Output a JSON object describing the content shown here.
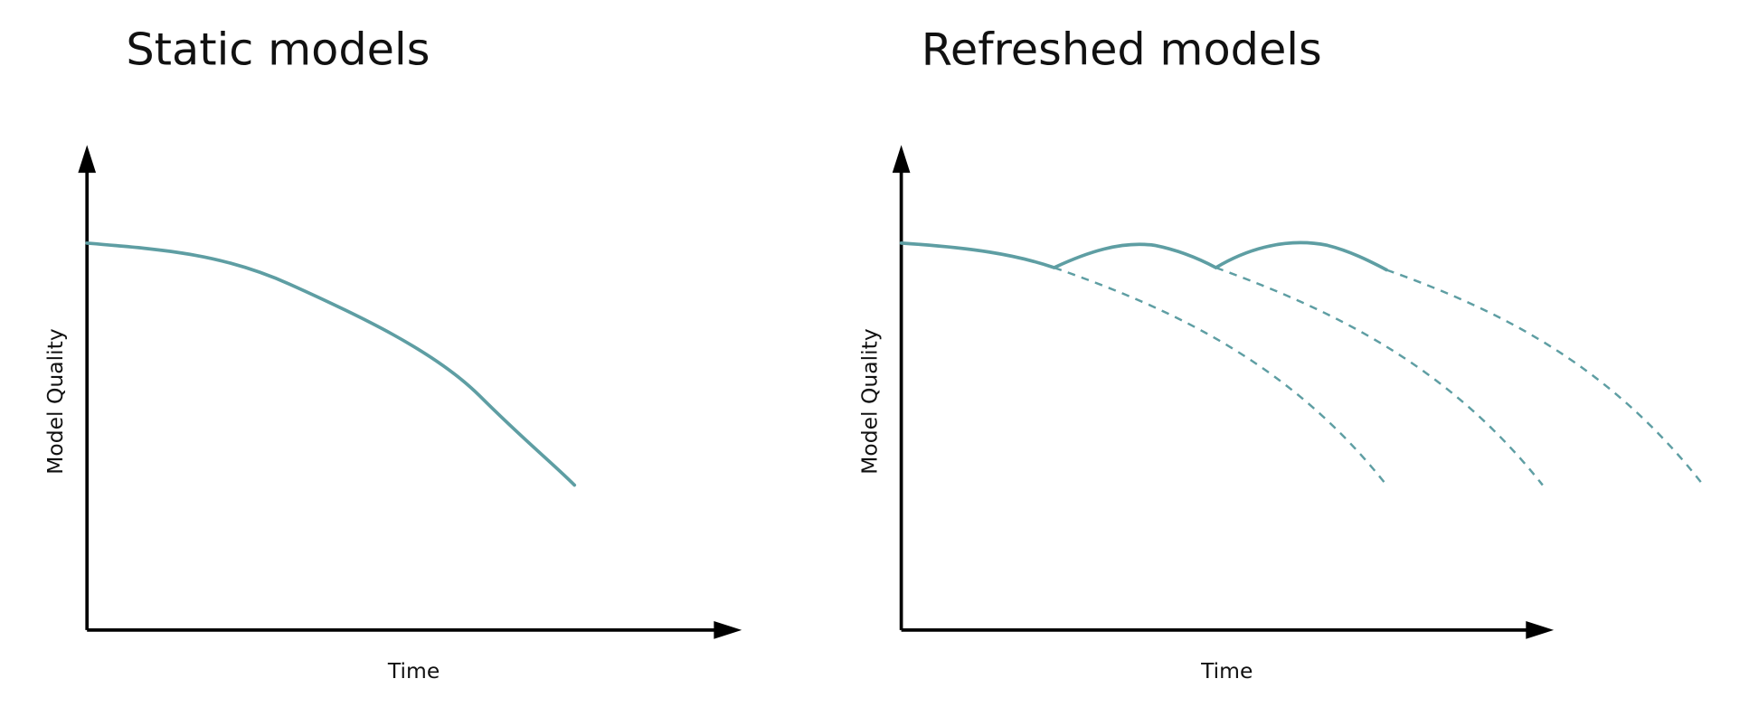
{
  "panels": [
    {
      "title": "Static models",
      "y_label": "Model Quality",
      "x_label": "Time"
    },
    {
      "title": "Refreshed models",
      "y_label": "Model Quality",
      "x_label": "Time"
    }
  ]
}
